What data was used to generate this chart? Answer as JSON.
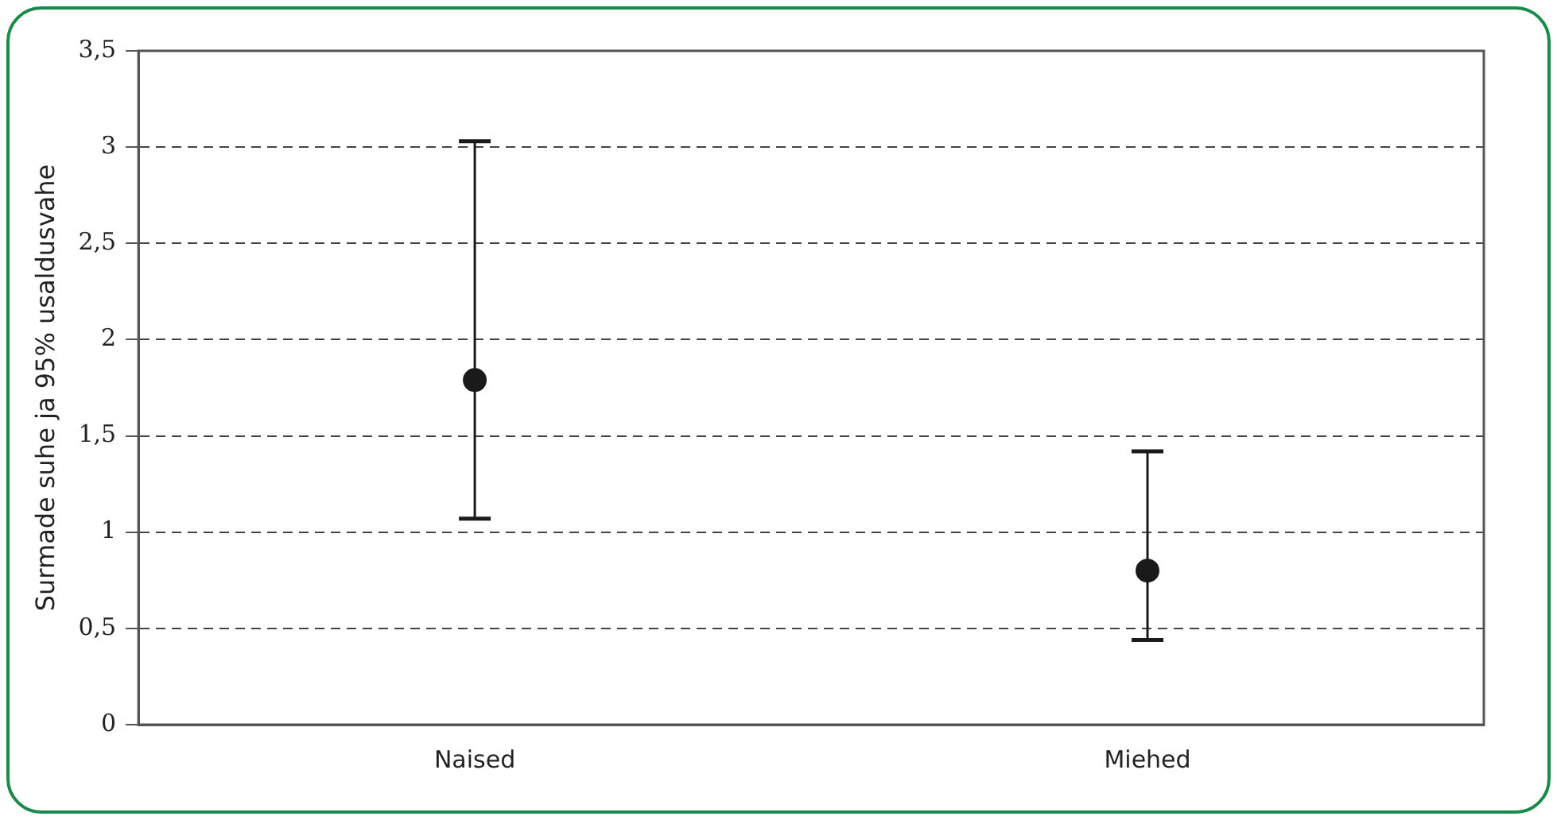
{
  "chart_data": {
    "type": "scatter",
    "ylabel": "Surmade suhe ja 95% usaldusvahe",
    "categories": [
      "Naised",
      "Miehed"
    ],
    "series": [
      {
        "color": "#1a1a1a",
        "values": [
          1.79,
          0.8
        ],
        "errors": [
          [
            1.07,
            3.03
          ],
          [
            0.44,
            1.42
          ]
        ]
      }
    ],
    "ylim": [
      0,
      3.5
    ],
    "yticks": [
      {
        "value": 0,
        "label": "0"
      },
      {
        "value": 0.5,
        "label": "0,5"
      },
      {
        "value": 1,
        "label": "1"
      },
      {
        "value": 1.5,
        "label": "1,5"
      },
      {
        "value": 2,
        "label": "2"
      },
      {
        "value": 2.5,
        "label": "2,5"
      },
      {
        "value": 3,
        "label": "3"
      },
      {
        "value": 3.5,
        "label": "3,5"
      }
    ],
    "grid": "y",
    "legend": false,
    "marker": "circle"
  }
}
